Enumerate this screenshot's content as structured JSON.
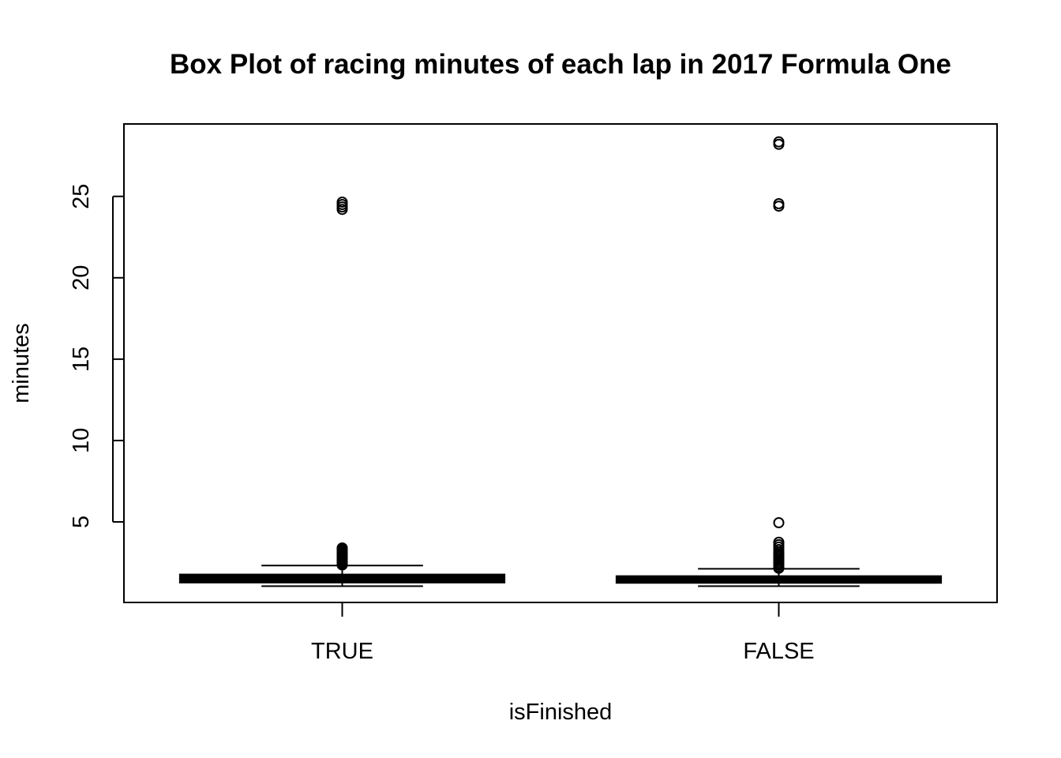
{
  "chart_data": {
    "type": "box",
    "title": "Box Plot of racing minutes of each lap in 2017 Formula One",
    "xlabel": "isFinished",
    "ylabel": "minutes",
    "categories": [
      "TRUE",
      "FALSE"
    ],
    "y_ticks": [
      5,
      10,
      15,
      20,
      25
    ],
    "ylim": [
      0.05,
      29.45
    ],
    "grid": false,
    "legend": "none",
    "boxes": [
      {
        "category": "TRUE",
        "whisker_low": 1.05,
        "q1": 1.32,
        "median": 1.5,
        "q3": 1.72,
        "whisker_high": 2.32,
        "outliers": [
          2.35,
          2.42,
          2.5,
          2.58,
          2.65,
          2.72,
          2.8,
          2.88,
          2.95,
          3.02,
          3.1,
          3.18,
          3.25,
          3.32,
          3.4,
          24.2,
          24.35,
          24.5,
          24.65
        ]
      },
      {
        "category": "FALSE",
        "whisker_low": 1.05,
        "q1": 1.3,
        "median": 1.45,
        "q3": 1.62,
        "whisker_high": 2.12,
        "outliers": [
          2.15,
          2.25,
          2.35,
          2.45,
          2.55,
          2.65,
          2.75,
          2.85,
          2.95,
          3.05,
          3.15,
          3.3,
          3.45,
          3.6,
          3.75,
          4.95,
          24.4,
          24.55,
          28.2,
          28.35
        ]
      }
    ]
  }
}
